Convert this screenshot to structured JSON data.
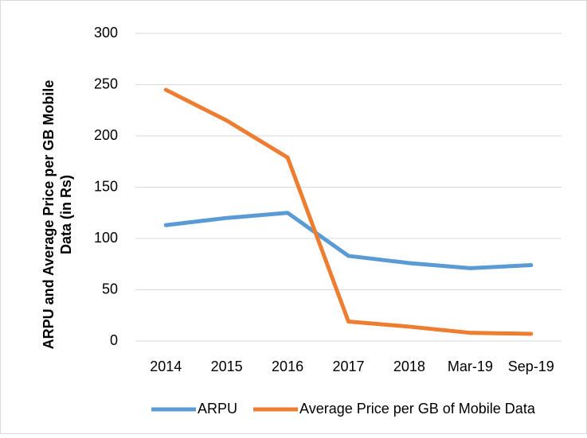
{
  "chart_data": {
    "type": "line",
    "y_label": [
      "ARPU and Average Price per GB Mobile",
      "Data (in Rs)"
    ],
    "categories": [
      "2014",
      "2015",
      "2016",
      "2017",
      "2018",
      "Mar-19",
      "Sep-19"
    ],
    "series": [
      {
        "name": "ARPU",
        "color": "#5b9bd5",
        "values": [
          113,
          120,
          125,
          83,
          76,
          71,
          74
        ]
      },
      {
        "name": "Average Price per GB of Mobile Data",
        "color": "#ed7d31",
        "values": [
          245,
          215,
          179,
          19,
          14,
          8,
          7
        ]
      }
    ],
    "ylim": [
      0,
      300
    ],
    "yticks": [
      0,
      50,
      100,
      150,
      200,
      250,
      300
    ],
    "grid": true,
    "legend": "bottom"
  }
}
